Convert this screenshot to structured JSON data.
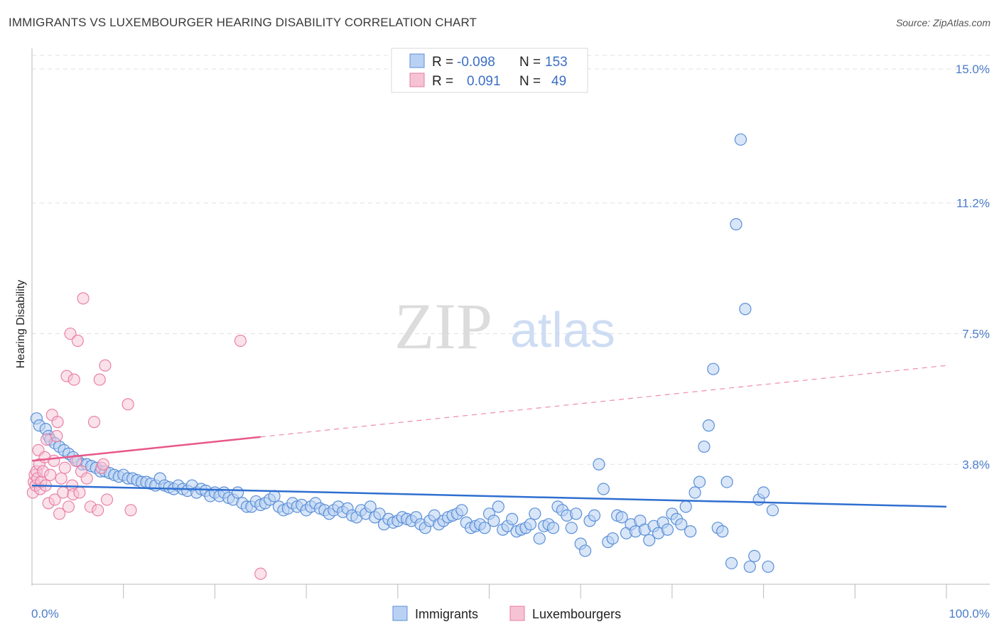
{
  "title": "IMMIGRANTS VS LUXEMBOURGER HEARING DISABILITY CORRELATION CHART",
  "source": "Source: ZipAtlas.com",
  "watermark": {
    "zip": "ZIP",
    "atlas": "atlas"
  },
  "colors": {
    "immigrants": "#5a8fd8",
    "immigrants_fill": "#b9d1f3",
    "luxembourgers": "#e87aa0",
    "luxembourgers_fill": "#f6c3d5",
    "trend_blue": "#2f6fd0",
    "trend_pink": "#e8588a",
    "axis_label": "#4a7cc9"
  },
  "legend": {
    "rows": [
      {
        "r_label": "R =",
        "r_value": "-0.098",
        "n_label": "N =",
        "n_value": "153"
      },
      {
        "r_label": "R =",
        "r_value": "0.091",
        "n_label": "N =",
        "n_value": "49"
      }
    ]
  },
  "bottom_legend": {
    "immigrants": "Immigrants",
    "luxembourgers": "Luxembourgers"
  },
  "chart_data": {
    "type": "scatter",
    "title": "IMMIGRANTS VS LUXEMBOURGER HEARING DISABILITY CORRELATION CHART",
    "xlabel": "",
    "ylabel": "Hearing Disability",
    "xlim": [
      0,
      100
    ],
    "ylim": [
      0.0,
      15.0
    ],
    "x_tick_labels": [
      "0.0%",
      "100.0%"
    ],
    "y_ticks": [
      3.8,
      7.5,
      11.2,
      15.0
    ],
    "y_tick_labels": [
      "3.8%",
      "7.5%",
      "11.2%",
      "15.0%"
    ],
    "grid": true,
    "legend_position": "top-center",
    "series": [
      {
        "name": "Immigrants",
        "r": -0.098,
        "n": 153,
        "trend": {
          "x": [
            0,
            100
          ],
          "y": [
            3.2,
            2.6
          ],
          "dashed_from": null
        },
        "points": [
          [
            0.5,
            5.1
          ],
          [
            0.8,
            4.9
          ],
          [
            1.5,
            4.8
          ],
          [
            1.8,
            4.6
          ],
          [
            2.0,
            4.5
          ],
          [
            2.5,
            4.4
          ],
          [
            3.0,
            4.3
          ],
          [
            3.5,
            4.2
          ],
          [
            4.0,
            4.1
          ],
          [
            4.5,
            4.0
          ],
          [
            5.0,
            3.9
          ],
          [
            5.5,
            3.8
          ],
          [
            6.0,
            3.8
          ],
          [
            6.5,
            3.75
          ],
          [
            7.0,
            3.7
          ],
          [
            7.5,
            3.6
          ],
          [
            8.0,
            3.6
          ],
          [
            8.5,
            3.55
          ],
          [
            9.0,
            3.5
          ],
          [
            9.5,
            3.45
          ],
          [
            10.0,
            3.5
          ],
          [
            10.5,
            3.4
          ],
          [
            11.0,
            3.4
          ],
          [
            11.5,
            3.35
          ],
          [
            12.0,
            3.3
          ],
          [
            12.5,
            3.3
          ],
          [
            13.0,
            3.25
          ],
          [
            13.5,
            3.2
          ],
          [
            14.0,
            3.4
          ],
          [
            14.5,
            3.2
          ],
          [
            15.0,
            3.15
          ],
          [
            15.5,
            3.1
          ],
          [
            16.0,
            3.2
          ],
          [
            16.5,
            3.1
          ],
          [
            17.0,
            3.05
          ],
          [
            17.5,
            3.2
          ],
          [
            18.0,
            3.0
          ],
          [
            18.5,
            3.1
          ],
          [
            19.0,
            3.05
          ],
          [
            19.5,
            2.9
          ],
          [
            20.0,
            3.0
          ],
          [
            20.5,
            2.9
          ],
          [
            21.0,
            3.0
          ],
          [
            21.5,
            2.85
          ],
          [
            22.0,
            2.8
          ],
          [
            22.5,
            3.0
          ],
          [
            23.0,
            2.7
          ],
          [
            23.5,
            2.6
          ],
          [
            24.0,
            2.6
          ],
          [
            24.5,
            2.75
          ],
          [
            25.0,
            2.65
          ],
          [
            25.5,
            2.7
          ],
          [
            26.0,
            2.8
          ],
          [
            26.5,
            2.9
          ],
          [
            27.0,
            2.6
          ],
          [
            27.5,
            2.5
          ],
          [
            28.0,
            2.55
          ],
          [
            28.5,
            2.7
          ],
          [
            29.0,
            2.6
          ],
          [
            29.5,
            2.65
          ],
          [
            30.0,
            2.5
          ],
          [
            30.5,
            2.6
          ],
          [
            31.0,
            2.7
          ],
          [
            31.5,
            2.55
          ],
          [
            32.0,
            2.5
          ],
          [
            32.5,
            2.4
          ],
          [
            33.0,
            2.5
          ],
          [
            33.5,
            2.6
          ],
          [
            34.0,
            2.45
          ],
          [
            34.5,
            2.55
          ],
          [
            35.0,
            2.35
          ],
          [
            35.5,
            2.3
          ],
          [
            36.0,
            2.5
          ],
          [
            36.5,
            2.4
          ],
          [
            37.0,
            2.6
          ],
          [
            37.5,
            2.3
          ],
          [
            38.0,
            2.4
          ],
          [
            38.5,
            2.1
          ],
          [
            39.0,
            2.25
          ],
          [
            39.5,
            2.15
          ],
          [
            40.0,
            2.2
          ],
          [
            40.5,
            2.3
          ],
          [
            41.0,
            2.25
          ],
          [
            41.5,
            2.2
          ],
          [
            42.0,
            2.3
          ],
          [
            42.5,
            2.1
          ],
          [
            43.0,
            2.0
          ],
          [
            43.5,
            2.2
          ],
          [
            44.0,
            2.35
          ],
          [
            44.5,
            2.1
          ],
          [
            45.0,
            2.2
          ],
          [
            45.5,
            2.3
          ],
          [
            46.0,
            2.35
          ],
          [
            46.5,
            2.4
          ],
          [
            47.0,
            2.5
          ],
          [
            47.5,
            2.15
          ],
          [
            48.0,
            2.0
          ],
          [
            48.5,
            2.05
          ],
          [
            49.0,
            2.1
          ],
          [
            49.5,
            2.0
          ],
          [
            50.0,
            2.4
          ],
          [
            50.5,
            2.2
          ],
          [
            51.0,
            2.6
          ],
          [
            51.5,
            1.95
          ],
          [
            52.0,
            2.05
          ],
          [
            52.5,
            2.25
          ],
          [
            53.0,
            1.9
          ],
          [
            53.5,
            1.95
          ],
          [
            54.0,
            2.0
          ],
          [
            54.5,
            2.1
          ],
          [
            55.0,
            2.4
          ],
          [
            55.5,
            1.7
          ],
          [
            56.0,
            2.05
          ],
          [
            56.5,
            2.1
          ],
          [
            57.0,
            2.0
          ],
          [
            57.5,
            2.6
          ],
          [
            58.0,
            2.5
          ],
          [
            58.5,
            2.35
          ],
          [
            59.0,
            2.0
          ],
          [
            59.5,
            2.4
          ],
          [
            60.0,
            1.55
          ],
          [
            60.5,
            1.35
          ],
          [
            61.0,
            2.2
          ],
          [
            61.5,
            2.35
          ],
          [
            62.0,
            3.8
          ],
          [
            62.5,
            3.1
          ],
          [
            63.0,
            1.6
          ],
          [
            63.5,
            1.7
          ],
          [
            64.0,
            2.35
          ],
          [
            64.5,
            2.3
          ],
          [
            65.0,
            1.85
          ],
          [
            65.5,
            2.1
          ],
          [
            66.0,
            1.9
          ],
          [
            66.5,
            2.2
          ],
          [
            67.0,
            1.95
          ],
          [
            67.5,
            1.65
          ],
          [
            68.0,
            2.05
          ],
          [
            68.5,
            1.85
          ],
          [
            69.0,
            2.15
          ],
          [
            69.5,
            1.95
          ],
          [
            70.0,
            2.4
          ],
          [
            70.5,
            2.25
          ],
          [
            71.0,
            2.1
          ],
          [
            71.5,
            2.6
          ],
          [
            72.0,
            1.9
          ],
          [
            72.5,
            3.0
          ],
          [
            73.0,
            3.3
          ],
          [
            73.5,
            4.3
          ],
          [
            74.0,
            4.9
          ],
          [
            74.5,
            6.5
          ],
          [
            75.0,
            2.0
          ],
          [
            75.5,
            1.9
          ],
          [
            76.0,
            3.3
          ],
          [
            76.5,
            1.0
          ],
          [
            77.0,
            10.6
          ],
          [
            77.5,
            13.0
          ],
          [
            78.0,
            8.2
          ],
          [
            78.5,
            0.9
          ],
          [
            79.0,
            1.2
          ],
          [
            79.5,
            2.8
          ],
          [
            80.0,
            3.0
          ],
          [
            80.5,
            0.9
          ],
          [
            81.0,
            2.5
          ]
        ]
      },
      {
        "name": "Luxembourgers",
        "r": 0.091,
        "n": 49,
        "trend": {
          "x": [
            0,
            100
          ],
          "y": [
            3.9,
            6.6
          ],
          "solid_until": 25
        },
        "points": [
          [
            0.1,
            3.0
          ],
          [
            0.2,
            3.3
          ],
          [
            0.3,
            3.5
          ],
          [
            0.4,
            3.2
          ],
          [
            0.5,
            3.6
          ],
          [
            0.6,
            3.4
          ],
          [
            0.7,
            4.2
          ],
          [
            0.8,
            3.8
          ],
          [
            0.9,
            3.1
          ],
          [
            1.0,
            3.3
          ],
          [
            1.2,
            3.6
          ],
          [
            1.4,
            4.0
          ],
          [
            1.5,
            3.2
          ],
          [
            1.6,
            4.5
          ],
          [
            1.8,
            2.7
          ],
          [
            2.0,
            3.5
          ],
          [
            2.2,
            5.2
          ],
          [
            2.4,
            3.9
          ],
          [
            2.5,
            2.8
          ],
          [
            2.7,
            4.6
          ],
          [
            2.8,
            5.0
          ],
          [
            3.0,
            2.4
          ],
          [
            3.2,
            3.4
          ],
          [
            3.4,
            3.0
          ],
          [
            3.6,
            3.7
          ],
          [
            3.8,
            6.3
          ],
          [
            4.0,
            2.6
          ],
          [
            4.2,
            7.5
          ],
          [
            4.4,
            3.2
          ],
          [
            4.5,
            2.95
          ],
          [
            4.6,
            6.2
          ],
          [
            4.8,
            3.9
          ],
          [
            5.0,
            7.3
          ],
          [
            5.2,
            3.0
          ],
          [
            5.4,
            3.6
          ],
          [
            5.6,
            8.5
          ],
          [
            6.0,
            3.4
          ],
          [
            6.4,
            2.6
          ],
          [
            6.8,
            5.0
          ],
          [
            7.2,
            2.5
          ],
          [
            7.4,
            6.2
          ],
          [
            7.6,
            3.7
          ],
          [
            7.8,
            3.8
          ],
          [
            8.0,
            6.6
          ],
          [
            8.2,
            2.8
          ],
          [
            10.5,
            5.5
          ],
          [
            10.8,
            2.5
          ],
          [
            22.8,
            7.3
          ],
          [
            25.0,
            0.7
          ]
        ]
      }
    ]
  }
}
